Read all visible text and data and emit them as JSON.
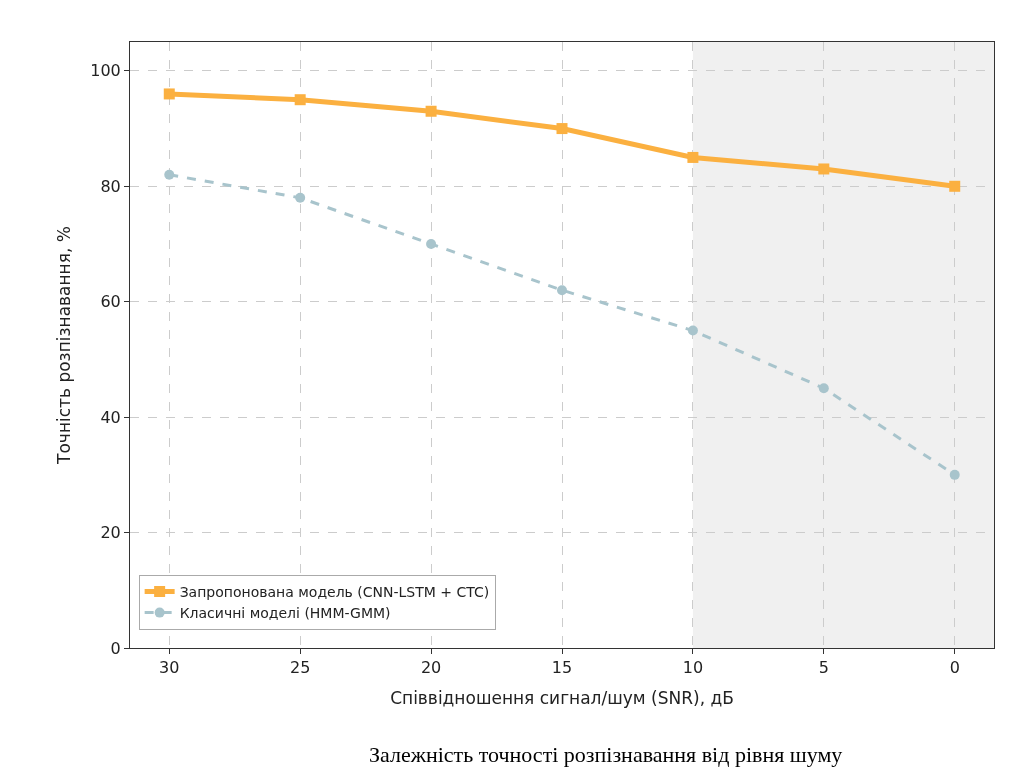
{
  "chart_data": {
    "type": "line",
    "xlabel": "Співвідношення сигнал/шум (SNR), дБ",
    "ylabel": "Точність розпізнавання, %",
    "x": [
      30,
      25,
      20,
      15,
      10,
      5,
      0
    ],
    "series": [
      {
        "name": "Запропонована модель (CNN-LSTM + CTC)",
        "color": "#fbb040",
        "values": [
          96,
          95,
          93,
          90,
          85,
          83,
          80
        ],
        "marker": "square",
        "line_style": "solid"
      },
      {
        "name": "Класичні моделі (HMM-GMM)",
        "color": "#a8c4cc",
        "values": [
          82,
          78,
          70,
          62,
          55,
          45,
          30
        ],
        "marker": "circle",
        "line_style": "dashed"
      }
    ],
    "xlim": [
      31.5,
      -1.5
    ],
    "xticks": [
      30,
      25,
      20,
      15,
      10,
      5,
      0
    ],
    "ylim": [
      0,
      105
    ],
    "yticks": [
      0,
      20,
      40,
      60,
      80,
      100
    ],
    "bands": [
      {
        "axis": "x",
        "from": 10,
        "to": -1.5,
        "color": "#f0f0f0"
      }
    ],
    "grid": true,
    "legend": "bottom left",
    "annotations": [
      "Залежність точності розпізнавання від рівня шуму"
    ]
  }
}
